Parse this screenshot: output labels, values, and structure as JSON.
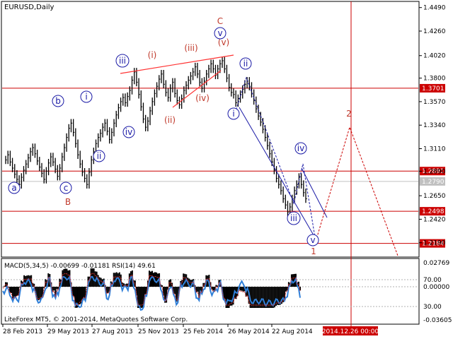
{
  "chart_data": {
    "type": "line",
    "title": "EURUSD,Daily",
    "symbol": "EURUSD",
    "timeframe": "Daily",
    "price_axis": {
      "ticks": [
        "1.4490",
        "1.4260",
        "1.4020",
        "1.3800",
        "1.3570",
        "1.3340",
        "1.3110",
        "1.2890",
        "1.2650",
        "1.2420",
        "1.2190"
      ],
      "range": [
        1.205,
        1.455
      ]
    },
    "date_axis": [
      "28 Feb 2013",
      "29 May 2013",
      "27 Aug 2013",
      "25 Nov 2013",
      "25 Feb 2014",
      "26 May 2014",
      "22 Aug 2014"
    ],
    "cursor_date_label": "2014.12.26 00:00",
    "horizontal_levels": [
      {
        "label": "1.3701",
        "value": 1.3701,
        "color": "#cc0000"
      },
      {
        "label": "1.2891",
        "value": 1.2891,
        "color": "#cc0000"
      },
      {
        "label": "1.2790",
        "value": 1.279,
        "color": "#c0c0c0"
      },
      {
        "label": "1.2498",
        "value": 1.2498,
        "color": "#cc0000"
      },
      {
        "label": "1.2184",
        "value": 1.2184,
        "color": "#cc0000"
      }
    ],
    "price_series": [
      1.3,
      1.305,
      1.298,
      1.292,
      1.286,
      1.281,
      1.276,
      1.283,
      1.29,
      1.296,
      1.302,
      1.308,
      1.312,
      1.306,
      1.299,
      1.293,
      1.287,
      1.281,
      1.289,
      1.297,
      1.303,
      1.298,
      1.291,
      1.284,
      1.292,
      1.303,
      1.312,
      1.322,
      1.331,
      1.336,
      1.327,
      1.316,
      1.305,
      1.296,
      1.288,
      1.282,
      1.276,
      1.288,
      1.3,
      1.308,
      1.316,
      1.322,
      1.326,
      1.332,
      1.336,
      1.328,
      1.32,
      1.327,
      1.336,
      1.344,
      1.351,
      1.357,
      1.361,
      1.356,
      1.362,
      1.368,
      1.378,
      1.386,
      1.376,
      1.364,
      1.352,
      1.34,
      1.332,
      1.338,
      1.348,
      1.357,
      1.365,
      1.372,
      1.379,
      1.384,
      1.374,
      1.366,
      1.361,
      1.37,
      1.376,
      1.365,
      1.358,
      1.354,
      1.36,
      1.368,
      1.373,
      1.378,
      1.382,
      1.386,
      1.391,
      1.384,
      1.376,
      1.37,
      1.377,
      1.384,
      1.389,
      1.394,
      1.389,
      1.383,
      1.389,
      1.394,
      1.397,
      1.389,
      1.38,
      1.371,
      1.366,
      1.364,
      1.356,
      1.36,
      1.364,
      1.369,
      1.374,
      1.377,
      1.372,
      1.365,
      1.358,
      1.35,
      1.343,
      1.337,
      1.33,
      1.322,
      1.314,
      1.306,
      1.298,
      1.29,
      1.282,
      1.276,
      1.27,
      1.262,
      1.256,
      1.249,
      1.254,
      1.262,
      1.27,
      1.276,
      1.283,
      1.276,
      1.268,
      1.262
    ],
    "wave_labels": [
      {
        "text": "a",
        "color": "blue",
        "circled": true
      },
      {
        "text": "b",
        "color": "blue",
        "circled": true
      },
      {
        "text": "c",
        "color": "blue",
        "circled": true
      },
      {
        "text": "B",
        "color": "red",
        "circled": false
      },
      {
        "text": "i",
        "color": "blue",
        "circled": true
      },
      {
        "text": "ii",
        "color": "blue",
        "circled": true
      },
      {
        "text": "iii",
        "color": "blue",
        "circled": true
      },
      {
        "text": "iv",
        "color": "blue",
        "circled": true
      },
      {
        "text": "(i)",
        "color": "red",
        "circled": false
      },
      {
        "text": "(ii)",
        "color": "red",
        "circled": false
      },
      {
        "text": "(iii)",
        "color": "red",
        "circled": false
      },
      {
        "text": "(iv)",
        "color": "red",
        "circled": false
      },
      {
        "text": "(v)",
        "color": "red",
        "circled": false
      },
      {
        "text": "v",
        "color": "blue",
        "circled": true
      },
      {
        "text": "C",
        "color": "red",
        "circled": false
      },
      {
        "text": "ii",
        "color": "blue",
        "circled": true
      },
      {
        "text": "i",
        "color": "blue",
        "circled": true
      },
      {
        "text": "iii",
        "color": "blue",
        "circled": true
      },
      {
        "text": "iv",
        "color": "blue",
        "circled": true
      },
      {
        "text": "v",
        "color": "blue",
        "circled": true
      },
      {
        "text": "1",
        "color": "red",
        "circled": false
      },
      {
        "text": "2",
        "color": "red",
        "circled": false
      }
    ],
    "indicator": {
      "label": "MACD(5,34,5) -0.00699 -0.01181 RSI(14) 49.61",
      "ticks": [
        "0.02769",
        "70.00",
        "0.00000",
        "30.00",
        "-0.03605"
      ]
    },
    "copyright": "LiteForex MT5, © 2001-2014, MetaQuotes Software Corp."
  }
}
